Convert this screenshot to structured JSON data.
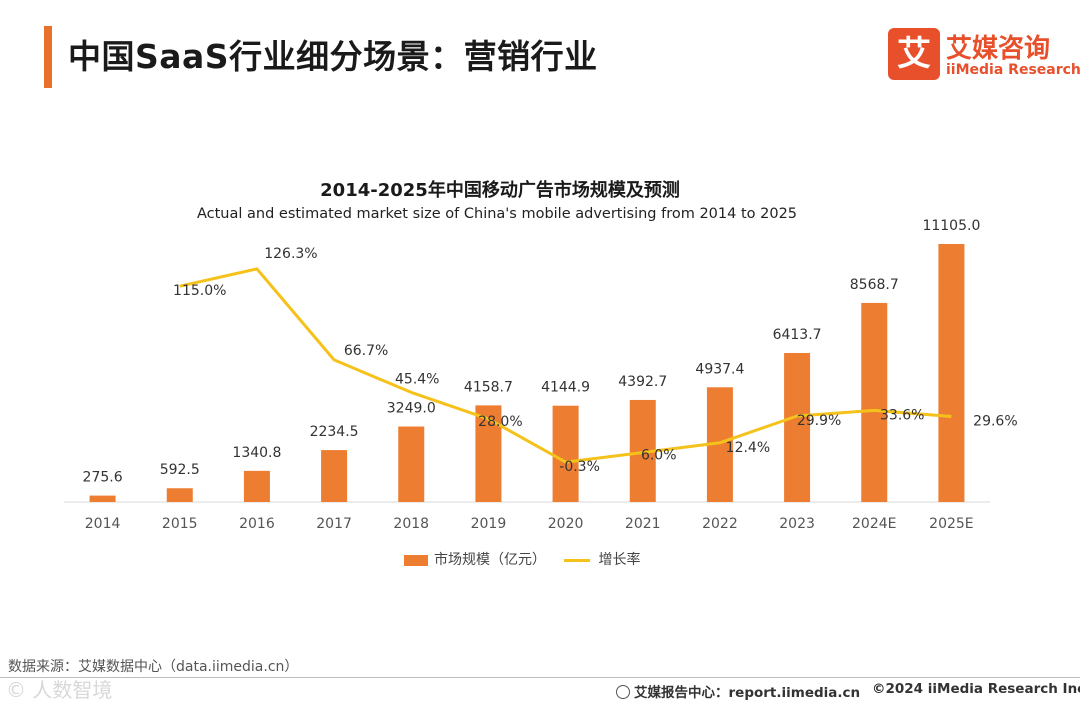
{
  "header": {
    "title": "中国SaaS行业细分场景：营销行业",
    "brand_mark": "艾",
    "brand_cn": "艾媒咨询",
    "brand_en": "iiMedia Research",
    "accent_color": "#e8722c",
    "brand_color": "#e8502c"
  },
  "chart_data": {
    "type": "bar",
    "title": "2014-2025年中国移动广告市场规模及预测",
    "subtitle": "Actual and estimated market size of China's mobile advertising from 2014 to 2025",
    "categories": [
      "2014",
      "2015",
      "2016",
      "2017",
      "2018",
      "2019",
      "2020",
      "2021",
      "2022",
      "2023",
      "2024E",
      "2025E"
    ],
    "series": [
      {
        "name": "市场规模（亿元）",
        "type": "bar",
        "color": "#ec7d31",
        "values": [
          275.6,
          592.5,
          1340.8,
          2234.5,
          3249.0,
          4158.7,
          4144.9,
          4392.7,
          4937.4,
          6413.7,
          8568.7,
          11105.0
        ],
        "labels": [
          "275.6",
          "592.5",
          "1340.8",
          "2234.5",
          "3249.0",
          "4158.7",
          "4144.9",
          "4392.7",
          "4937.4",
          "6413.7",
          "8568.7",
          "11105.0"
        ]
      },
      {
        "name": "增长率",
        "type": "line",
        "color": "#f5c21b",
        "values": [
          null,
          115.0,
          126.3,
          66.7,
          45.4,
          28.0,
          -0.3,
          6.0,
          12.4,
          29.9,
          33.6,
          29.6
        ],
        "labels": [
          "",
          "115.0%",
          "126.3%",
          "66.7%",
          "45.4%",
          "28.0%",
          "-0.3%",
          "6.0%",
          "12.4%",
          "29.9%",
          "33.6%",
          "29.6%"
        ]
      }
    ],
    "bar_ylim": [
      0,
      11500
    ],
    "line_ylim": [
      -12,
      140
    ],
    "legend": "bottom-center",
    "grid": false
  },
  "legend": {
    "bar_label": "市场规模（亿元）",
    "line_label": "增长率"
  },
  "footer": {
    "source": "数据来源：艾媒数据中心（data.iimedia.cn）",
    "watermark": "©  人数智境",
    "report_center": "艾媒报告中心：report.iimedia.cn",
    "copyright": "©2024 iiMedia Research Inc"
  }
}
